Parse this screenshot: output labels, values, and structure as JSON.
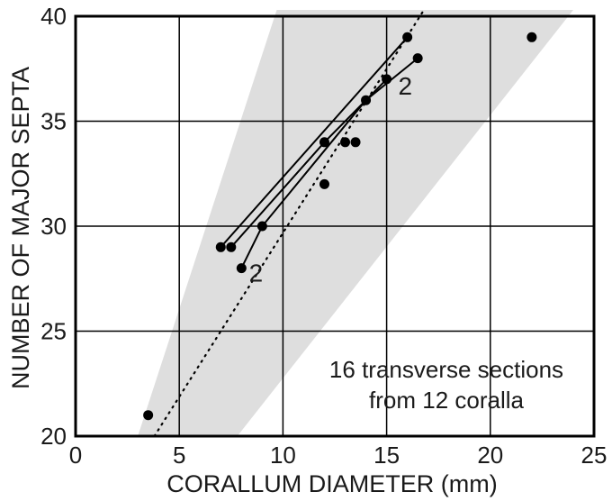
{
  "chart_data": {
    "type": "scatter",
    "xlabel": "CORALLUM DIAMETER (mm)",
    "ylabel": "NUMBER OF MAJOR SEPTA",
    "xlim": [
      0,
      25
    ],
    "ylim": [
      20,
      40
    ],
    "xticks": [
      "0",
      "5",
      "10",
      "15",
      "20",
      "25"
    ],
    "yticks": [
      "20",
      "25",
      "30",
      "35",
      "40"
    ],
    "grid": true,
    "shaded_region": [
      [
        3,
        20
      ],
      [
        7.8,
        20
      ],
      [
        24,
        40.3
      ],
      [
        9.7,
        40.3
      ]
    ],
    "regression_line": [
      [
        3.8,
        20
      ],
      [
        16.8,
        40.3
      ]
    ],
    "points": [
      {
        "x": 3.5,
        "y": 21
      },
      {
        "x": 7,
        "y": 29
      },
      {
        "x": 7.5,
        "y": 29
      },
      {
        "x": 8,
        "y": 28
      },
      {
        "x": 9,
        "y": 30
      },
      {
        "x": 12,
        "y": 32
      },
      {
        "x": 12,
        "y": 34
      },
      {
        "x": 13,
        "y": 34
      },
      {
        "x": 13.5,
        "y": 34
      },
      {
        "x": 14,
        "y": 36
      },
      {
        "x": 15,
        "y": 37
      },
      {
        "x": 16,
        "y": 39
      },
      {
        "x": 16.5,
        "y": 38
      },
      {
        "x": 22,
        "y": 39
      }
    ],
    "trajectories": [
      {
        "points": [
          [
            7,
            29
          ],
          [
            16,
            39
          ]
        ]
      },
      {
        "points": [
          [
            7.5,
            29
          ],
          [
            12,
            34
          ],
          [
            15,
            37
          ]
        ]
      },
      {
        "points": [
          [
            8,
            28
          ],
          [
            9,
            30
          ],
          [
            14,
            36
          ],
          [
            16.5,
            38
          ]
        ]
      }
    ],
    "point_labels": [
      {
        "x": 8.7,
        "y": 27.8,
        "text": "2"
      },
      {
        "x": 15.9,
        "y": 36.7,
        "text": "2"
      }
    ],
    "annotation": [
      "16 transverse sections",
      "from 12 coralla"
    ]
  }
}
